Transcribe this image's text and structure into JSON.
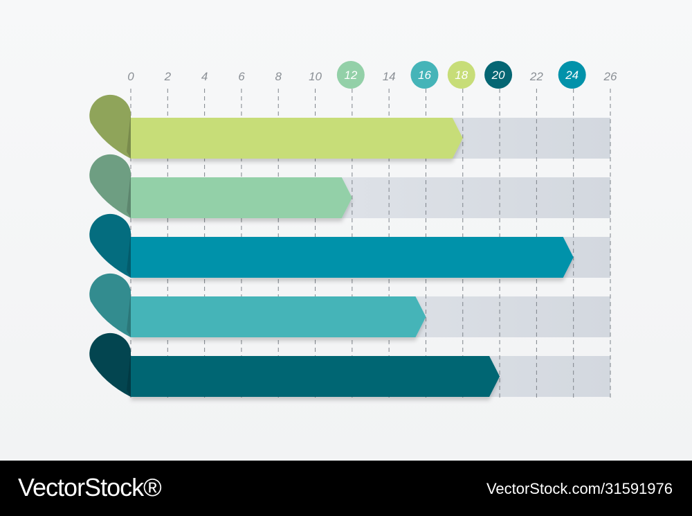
{
  "chart_data": {
    "type": "bar",
    "orientation": "horizontal",
    "x_ticks": [
      "0",
      "2",
      "4",
      "6",
      "8",
      "10",
      "12",
      "14",
      "16",
      "18",
      "20",
      "22",
      "24",
      "26"
    ],
    "xlim": [
      0,
      26
    ],
    "grid": true,
    "bars": [
      {
        "value": 18,
        "color": "#c7dd78",
        "cap_color": "#8fa45a"
      },
      {
        "value": 12,
        "color": "#93d0a8",
        "cap_color": "#6e9e82"
      },
      {
        "value": 24,
        "color": "#0292aa",
        "cap_color": "#046d7f"
      },
      {
        "value": 16,
        "color": "#45b4b8",
        "cap_color": "#338c8f"
      },
      {
        "value": 20,
        "color": "#056673",
        "cap_color": "#034550"
      }
    ],
    "highlighted_ticks": [
      {
        "value": 12,
        "label": "12",
        "color": "#93d0a8"
      },
      {
        "value": 16,
        "label": "16",
        "color": "#45b4b8"
      },
      {
        "value": 18,
        "label": "18",
        "color": "#c7dd78"
      },
      {
        "value": 20,
        "label": "20",
        "color": "#056673"
      },
      {
        "value": 24,
        "label": "24",
        "color": "#0292aa"
      }
    ],
    "track_color": "#dfe3e8"
  },
  "footer": {
    "brand": "VectorStock®",
    "image_id": "VectorStock.com/31591976"
  }
}
